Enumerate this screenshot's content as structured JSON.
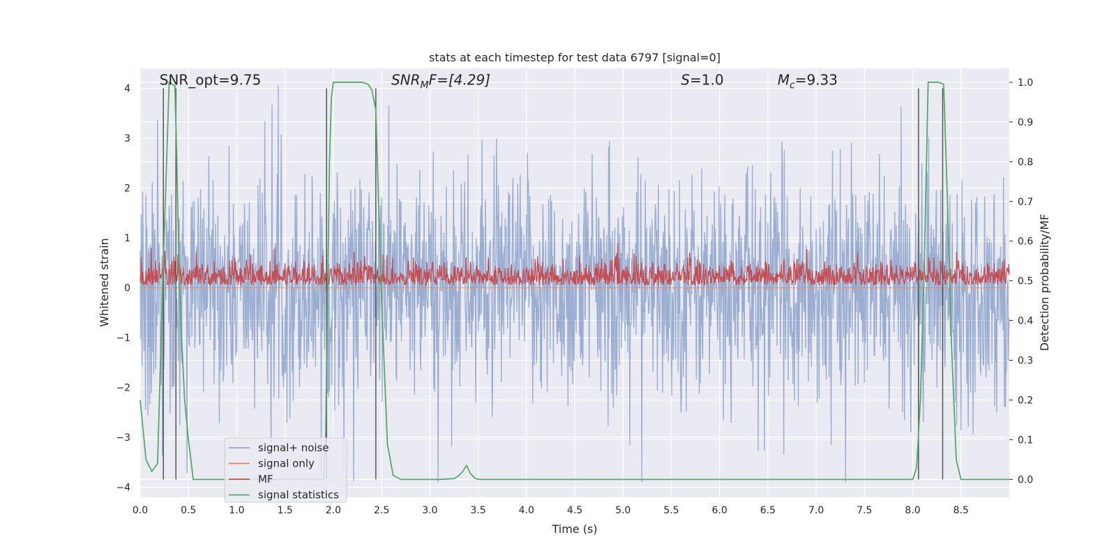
{
  "chart_data": {
    "type": "line",
    "title": "stats at each timestep for test data 6797 [signal=0]",
    "xlabel": "Time (s)",
    "ylabel": "Whitened strain",
    "ylabel_right": "Detection probability/MF",
    "xlim": [
      0,
      9.0
    ],
    "ylim": [
      -4.2,
      4.4
    ],
    "ylim_right": [
      -0.045,
      1.035
    ],
    "x_ticks": [
      0.0,
      0.5,
      1.0,
      1.5,
      2.0,
      2.5,
      3.0,
      3.5,
      4.0,
      4.5,
      5.0,
      5.5,
      6.0,
      6.5,
      7.0,
      7.5,
      8.0,
      8.5
    ],
    "x_tick_labels": [
      "0.0",
      "0.5",
      "1.0",
      "1.5",
      "2.0",
      "2.5",
      "3.0",
      "3.5",
      "4.0",
      "4.5",
      "5.0",
      "5.5",
      "6.0",
      "6.5",
      "7.0",
      "7.5",
      "8.0",
      "8.5"
    ],
    "y_ticks": [
      4,
      3,
      2,
      1,
      0,
      -1,
      -2,
      -3,
      -4
    ],
    "y_tick_labels": [
      "4",
      "3",
      "2",
      "1",
      "0",
      "−1",
      "−2",
      "−3",
      "−4"
    ],
    "y2_ticks": [
      1.0,
      0.9,
      0.8,
      0.7,
      0.6,
      0.5,
      0.4,
      0.3,
      0.2,
      0.1,
      0.0
    ],
    "y2_tick_labels": [
      "1.0",
      "0.9",
      "0.8",
      "0.7",
      "0.6",
      "0.5",
      "0.4",
      "0.3",
      "0.2",
      "0.1",
      "0.0"
    ],
    "series": [
      {
        "name": "signal+ noise",
        "color": "#4c72b0",
        "axis": "left",
        "description": "noise",
        "amplitude": 1.55
      },
      {
        "name": "signal only",
        "color": "#dd8452",
        "axis": "left",
        "description": "flat",
        "value": 0.0
      },
      {
        "name": "MF",
        "color": "#c44e52",
        "axis": "left",
        "description": "matched filter",
        "baseline": 0.05
      },
      {
        "name": "signal statistics",
        "color": "#55a868",
        "axis": "right",
        "x": [
          0.0,
          0.06,
          0.12,
          0.18,
          0.24,
          0.28,
          0.3,
          0.33,
          0.36,
          0.38,
          0.4,
          0.43,
          0.46,
          0.5,
          0.55,
          1.0,
          1.5,
          1.9,
          1.92,
          1.94,
          1.96,
          1.98,
          2.0,
          2.1,
          2.2,
          2.3,
          2.36,
          2.4,
          2.44,
          2.5,
          2.56,
          2.62,
          2.7,
          3.0,
          3.1,
          3.25,
          3.3,
          3.34,
          3.38,
          3.42,
          3.47,
          3.52,
          4.0,
          5.0,
          6.0,
          7.0,
          7.5,
          8.0,
          8.04,
          8.08,
          8.12,
          8.16,
          8.2,
          8.27,
          8.32,
          8.36,
          8.4,
          8.45,
          8.5,
          9.0
        ],
        "y": [
          0.2,
          0.05,
          0.02,
          0.04,
          0.55,
          0.85,
          1.0,
          0.995,
          0.99,
          0.8,
          0.55,
          0.35,
          0.2,
          0.1,
          0.0,
          0.0,
          0.0,
          0.0,
          0.1,
          0.45,
          0.8,
          0.96,
          1.0,
          1.0,
          1.0,
          1.0,
          0.995,
          0.98,
          0.93,
          0.45,
          0.09,
          0.01,
          0.0,
          0.0,
          0.0,
          0.002,
          0.01,
          0.02,
          0.035,
          0.015,
          0.002,
          0.0,
          0.0,
          0.0,
          0.0,
          0.0,
          0.0,
          0.0,
          0.03,
          0.2,
          0.55,
          1.0,
          1.0,
          1.0,
          0.995,
          0.7,
          0.35,
          0.05,
          0.0,
          0.0
        ]
      }
    ],
    "vertical_markers_x": [
      0.24,
      0.37,
      1.93,
      2.44,
      8.06,
      8.31
    ],
    "annotations": [
      {
        "text": "SNR_opt=9.75",
        "x": 0.2,
        "y": 4.1
      },
      {
        "text": "SNR",
        "sub": "M",
        "rest": "F=[4.29]",
        "x": 2.6,
        "y": 4.1,
        "italic": true
      },
      {
        "text": "S",
        "rest": "=1.0",
        "x": 5.6,
        "y": 4.1,
        "italic": true
      },
      {
        "text": "M",
        "sub": "c",
        "rest": "=9.33",
        "x": 6.6,
        "y": 4.1,
        "italic": true
      }
    ],
    "legend": {
      "position": "lower-left",
      "entries": [
        {
          "label": "signal+ noise",
          "color": "#4c72b0"
        },
        {
          "label": "signal only",
          "color": "#dd8452"
        },
        {
          "label": "MF",
          "color": "#c44e52"
        },
        {
          "label": "signal statistics",
          "color": "#55a868"
        }
      ]
    },
    "style": {
      "plot_background": "#eaeaf2",
      "grid_color": "#ffffff",
      "marker_color": "#555555"
    }
  }
}
